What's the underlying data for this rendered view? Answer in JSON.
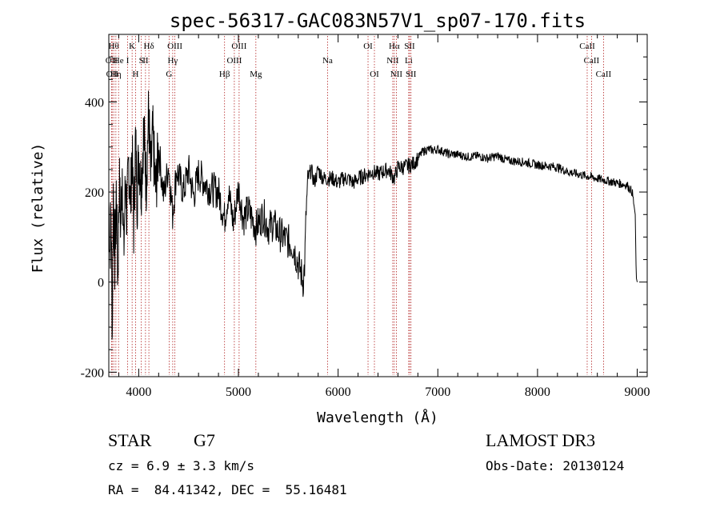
{
  "chart_data": {
    "type": "line",
    "title": "spec-56317-GAC083N57V1_sp07-170.fits",
    "xlabel": "Wavelength (Å)",
    "ylabel": "Flux (relative)",
    "xlim": [
      3700,
      9100
    ],
    "ylim": [
      -210,
      550
    ],
    "x_ticks": [
      4000,
      5000,
      6000,
      7000,
      8000,
      9000
    ],
    "y_ticks": [
      -200,
      0,
      200,
      400
    ],
    "line_color": "#000000",
    "marker_color": "#b22222",
    "series": [
      {
        "name": "flux",
        "anchors": [
          [
            3700,
            180
          ],
          [
            3712,
            60
          ],
          [
            3722,
            170
          ],
          [
            3735,
            -120
          ],
          [
            3745,
            210
          ],
          [
            3760,
            40
          ],
          [
            3775,
            200
          ],
          [
            3790,
            0
          ],
          [
            3805,
            230
          ],
          [
            3820,
            120
          ],
          [
            3835,
            260
          ],
          [
            3850,
            60
          ],
          [
            3868,
            240
          ],
          [
            3880,
            140
          ],
          [
            3900,
            270
          ],
          [
            3918,
            170
          ],
          [
            3933,
            300
          ],
          [
            3950,
            120
          ],
          [
            3968,
            320
          ],
          [
            3985,
            180
          ],
          [
            4000,
            290
          ],
          [
            4025,
            210
          ],
          [
            4050,
            340
          ],
          [
            4075,
            220
          ],
          [
            4100,
            380
          ],
          [
            4120,
            230
          ],
          [
            4140,
            330
          ],
          [
            4170,
            200
          ],
          [
            4200,
            300
          ],
          [
            4250,
            190
          ],
          [
            4300,
            260
          ],
          [
            4340,
            150
          ],
          [
            4380,
            250
          ],
          [
            4450,
            200
          ],
          [
            4500,
            250
          ],
          [
            4550,
            190
          ],
          [
            4600,
            240
          ],
          [
            4700,
            210
          ],
          [
            4800,
            200
          ],
          [
            4861,
            140
          ],
          [
            4900,
            200
          ],
          [
            4950,
            130
          ],
          [
            5000,
            210
          ],
          [
            5050,
            140
          ],
          [
            5100,
            160
          ],
          [
            5175,
            120
          ],
          [
            5250,
            150
          ],
          [
            5300,
            120
          ],
          [
            5350,
            130
          ],
          [
            5400,
            110
          ],
          [
            5450,
            100
          ],
          [
            5500,
            90
          ],
          [
            5550,
            80
          ],
          [
            5600,
            40
          ],
          [
            5630,
            20
          ],
          [
            5650,
            0
          ],
          [
            5665,
            40
          ],
          [
            5680,
            160
          ],
          [
            5700,
            230
          ],
          [
            5730,
            250
          ],
          [
            5760,
            220
          ],
          [
            5800,
            250
          ],
          [
            5850,
            230
          ],
          [
            5900,
            230
          ],
          [
            5950,
            230
          ],
          [
            6000,
            220
          ],
          [
            6050,
            230
          ],
          [
            6100,
            230
          ],
          [
            6150,
            220
          ],
          [
            6200,
            230
          ],
          [
            6250,
            235
          ],
          [
            6300,
            240
          ],
          [
            6350,
            245
          ],
          [
            6400,
            240
          ],
          [
            6450,
            245
          ],
          [
            6500,
            250
          ],
          [
            6563,
            230
          ],
          [
            6600,
            255
          ],
          [
            6650,
            255
          ],
          [
            6700,
            258
          ],
          [
            6750,
            262
          ],
          [
            6800,
            275
          ],
          [
            6850,
            290
          ],
          [
            6900,
            295
          ],
          [
            6950,
            293
          ],
          [
            7000,
            295
          ],
          [
            7050,
            290
          ],
          [
            7100,
            285
          ],
          [
            7200,
            283
          ],
          [
            7300,
            278
          ],
          [
            7400,
            280
          ],
          [
            7500,
            275
          ],
          [
            7600,
            280
          ],
          [
            7700,
            270
          ],
          [
            7800,
            268
          ],
          [
            7900,
            265
          ],
          [
            8000,
            260
          ],
          [
            8100,
            258
          ],
          [
            8200,
            255
          ],
          [
            8300,
            245
          ],
          [
            8400,
            240
          ],
          [
            8500,
            235
          ],
          [
            8600,
            230
          ],
          [
            8700,
            225
          ],
          [
            8800,
            220
          ],
          [
            8900,
            215
          ],
          [
            8950,
            200
          ],
          [
            8980,
            150
          ],
          [
            8990,
            10
          ],
          [
            9000,
            0
          ]
        ]
      }
    ],
    "line_markers": [
      {
        "wl": 3727,
        "label": "OII",
        "row": 1
      },
      {
        "wl": 3734,
        "label": "OII",
        "row": 2
      },
      {
        "wl": 3750,
        "label": "Hθ",
        "row": 0
      },
      {
        "wl": 3771,
        "label": "Hη",
        "row": 2
      },
      {
        "wl": 3798,
        "label": "He",
        "row": 1
      },
      {
        "wl": 3889,
        "label": "I",
        "row": 1
      },
      {
        "wl": 3934,
        "label": "K",
        "row": 0
      },
      {
        "wl": 3969,
        "label": "H",
        "row": 2
      },
      {
        "wl": 4026,
        "label": "S",
        "row": 1
      },
      {
        "wl": 4068,
        "label": "II",
        "row": 1
      },
      {
        "wl": 4102,
        "label": "Hδ",
        "row": 0
      },
      {
        "wl": 4305,
        "label": "G",
        "row": 2
      },
      {
        "wl": 4341,
        "label": "Hγ",
        "row": 1
      },
      {
        "wl": 4363,
        "label": "OIII",
        "row": 0
      },
      {
        "wl": 4861,
        "label": "Hβ",
        "row": 2
      },
      {
        "wl": 4959,
        "label": "OIII",
        "row": 1
      },
      {
        "wl": 5007,
        "label": "OIII",
        "row": 0
      },
      {
        "wl": 5175,
        "label": "Mg",
        "row": 2
      },
      {
        "wl": 5894,
        "label": "Na",
        "row": 1
      },
      {
        "wl": 6300,
        "label": "OI",
        "row": 0
      },
      {
        "wl": 6364,
        "label": "OI",
        "row": 2
      },
      {
        "wl": 6548,
        "label": "NII",
        "row": 1
      },
      {
        "wl": 6563,
        "label": "Hα",
        "row": 0
      },
      {
        "wl": 6584,
        "label": "NII",
        "row": 2
      },
      {
        "wl": 6708,
        "label": "Li",
        "row": 1
      },
      {
        "wl": 6717,
        "label": "SII",
        "row": 0
      },
      {
        "wl": 6731,
        "label": "SII",
        "row": 2
      },
      {
        "wl": 8498,
        "label": "CaII",
        "row": 0
      },
      {
        "wl": 8542,
        "label": "CaII",
        "row": 1
      },
      {
        "wl": 8662,
        "label": "CaII",
        "row": 2
      }
    ]
  },
  "info": {
    "class_label": "STAR",
    "subclass_label": "G7",
    "cz_text": "cz = 6.9 ± 3.3 km/s",
    "coords_text": "RA =  84.41342, DEC =  55.16481",
    "survey_label": "LAMOST DR3",
    "obs_date_text": "Obs-Date: 20130124"
  }
}
